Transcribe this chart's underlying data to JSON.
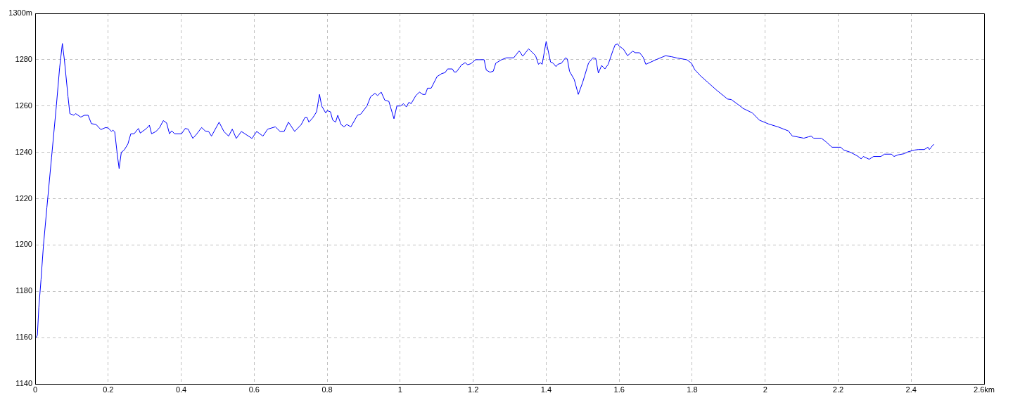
{
  "chart_data": {
    "type": "line",
    "x": [
      0.002,
      0.006,
      0.01,
      0.016,
      0.0225,
      0.032,
      0.045,
      0.058,
      0.067,
      0.0745,
      0.08,
      0.09,
      0.095,
      0.106,
      0.111,
      0.125,
      0.135,
      0.145,
      0.154,
      0.167,
      0.18,
      0.193,
      0.2,
      0.209,
      0.213,
      0.218,
      0.225,
      0.23,
      0.236,
      0.244,
      0.254,
      0.262,
      0.271,
      0.283,
      0.288,
      0.299,
      0.305,
      0.313,
      0.319,
      0.331,
      0.341,
      0.351,
      0.36,
      0.368,
      0.374,
      0.382,
      0.401,
      0.411,
      0.419,
      0.432,
      0.442,
      0.456,
      0.466,
      0.475,
      0.483,
      0.504,
      0.517,
      0.53,
      0.54,
      0.551,
      0.565,
      0.594,
      0.607,
      0.624,
      0.637,
      0.658,
      0.671,
      0.682,
      0.694,
      0.711,
      0.729,
      0.739,
      0.745,
      0.75,
      0.761,
      0.771,
      0.779,
      0.785,
      0.796,
      0.8,
      0.809,
      0.815,
      0.823,
      0.829,
      0.838,
      0.846,
      0.854,
      0.865,
      0.883,
      0.892,
      0.909,
      0.919,
      0.931,
      0.938,
      0.948,
      0.958,
      0.969,
      0.983,
      0.991,
      1.001,
      1.009,
      1.017,
      1.024,
      1.03,
      1.043,
      1.053,
      1.062,
      1.069,
      1.075,
      1.085,
      1.101,
      1.114,
      1.123,
      1.13,
      1.143,
      1.148,
      1.154,
      1.168,
      1.178,
      1.185,
      1.194,
      1.207,
      1.23,
      1.236,
      1.246,
      1.255,
      1.262,
      1.278,
      1.291,
      1.311,
      1.326,
      1.336,
      1.352,
      1.371,
      1.379,
      1.384,
      1.389,
      1.4,
      1.412,
      1.419,
      1.427,
      1.432,
      1.442,
      1.453,
      1.458,
      1.464,
      1.477,
      1.488,
      1.5,
      1.516,
      1.528,
      1.536,
      1.543,
      1.552,
      1.561,
      1.57,
      1.583,
      1.589,
      1.596,
      1.6,
      1.612,
      1.623,
      1.637,
      1.644,
      1.656,
      1.666,
      1.673,
      1.701,
      1.727,
      1.743,
      1.759,
      1.785,
      1.798,
      1.807,
      1.823,
      1.843,
      1.868,
      1.897,
      1.907,
      1.933,
      1.939,
      1.965,
      1.984,
      2.01,
      2.035,
      2.064,
      2.074,
      2.09,
      2.106,
      2.119,
      2.126,
      2.133,
      2.154,
      2.167,
      2.183,
      2.207,
      2.215,
      2.234,
      2.253,
      2.263,
      2.269,
      2.285,
      2.297,
      2.317,
      2.327,
      2.346,
      2.353,
      2.364,
      2.381,
      2.391,
      2.41,
      2.42,
      2.436,
      2.446,
      2.45,
      2.455,
      2.462
    ],
    "series": [
      {
        "color": "#0000ff",
        "values": [
          1160,
          1161,
          1173,
          1185,
          1199.5,
          1216,
          1238,
          1260,
          1276.5,
          1287,
          1280,
          1264,
          1256.7,
          1256,
          1256.7,
          1255.2,
          1256,
          1256,
          1252.4,
          1252,
          1249.8,
          1250.7,
          1250.5,
          1249,
          1249.6,
          1248.8,
          1239,
          1233,
          1240,
          1241,
          1243.6,
          1248,
          1248,
          1250.3,
          1248.3,
          1249.6,
          1250.3,
          1251.7,
          1248,
          1249,
          1250.7,
          1253.7,
          1252.7,
          1248,
          1249.3,
          1248,
          1248,
          1250.3,
          1250,
          1246,
          1247.8,
          1250.7,
          1249.2,
          1249,
          1247,
          1253,
          1249,
          1247,
          1250,
          1246,
          1249,
          1246,
          1249,
          1247,
          1250,
          1251,
          1249,
          1249,
          1253,
          1249,
          1252,
          1255,
          1255,
          1253,
          1255,
          1257.5,
          1265,
          1260,
          1257,
          1258,
          1257.5,
          1254,
          1253,
          1256,
          1252,
          1251,
          1252,
          1251,
          1256,
          1256.5,
          1260,
          1264,
          1265.5,
          1264.5,
          1266,
          1262.5,
          1262,
          1254.5,
          1260,
          1260,
          1261,
          1259.6,
          1261.6,
          1261,
          1264.5,
          1266,
          1265,
          1265,
          1267.7,
          1267.7,
          1272.7,
          1274,
          1274.4,
          1276,
          1276,
          1274.7,
          1274.7,
          1277.7,
          1278.7,
          1277.8,
          1278.3,
          1280,
          1280,
          1275.5,
          1274.6,
          1275,
          1278.5,
          1280,
          1280.8,
          1280.8,
          1283.8,
          1281.5,
          1284.7,
          1281.7,
          1278,
          1278.7,
          1278,
          1287.9,
          1279,
          1278.5,
          1277,
          1278,
          1278.5,
          1280.8,
          1280.3,
          1275,
          1271.4,
          1265,
          1270.2,
          1278.5,
          1280.8,
          1280.5,
          1274.2,
          1277.5,
          1276,
          1278,
          1284,
          1286.4,
          1286.8,
          1285.9,
          1284.5,
          1281.7,
          1283.7,
          1283,
          1283,
          1281,
          1278,
          1280,
          1281.7,
          1281.3,
          1280.7,
          1280,
          1278.5,
          1275.7,
          1273,
          1270.2,
          1266.7,
          1263,
          1262.8,
          1259.8,
          1259,
          1257,
          1253.9,
          1252.2,
          1251,
          1249.2,
          1247.1,
          1246.6,
          1246.1,
          1246.7,
          1247,
          1246.1,
          1246.1,
          1244.5,
          1242.2,
          1242.2,
          1241,
          1240,
          1238.4,
          1237.2,
          1238.2,
          1237,
          1238.2,
          1238.2,
          1239.2,
          1239.2,
          1238.2,
          1238.9,
          1239.4,
          1240.2,
          1241,
          1241.2,
          1241.2,
          1242.2,
          1241.2,
          1242.2,
          1243.5
        ]
      }
    ],
    "xlim": [
      0,
      2.6
    ],
    "xticks": [
      0,
      0.2,
      0.4,
      0.6,
      0.8,
      1,
      1.2,
      1.4,
      1.6,
      1.8,
      2,
      2.2,
      2.4,
      {
        "value": 2.6,
        "label": "2.6km"
      }
    ],
    "ylim": [
      1140,
      1300
    ],
    "yticks": [
      1140,
      1160,
      1180,
      1200,
      1220,
      1240,
      1260,
      1280,
      {
        "value": 1300,
        "label": "1300m"
      }
    ],
    "grid": true,
    "legend": false,
    "marker": "none",
    "line_style": "solid"
  }
}
